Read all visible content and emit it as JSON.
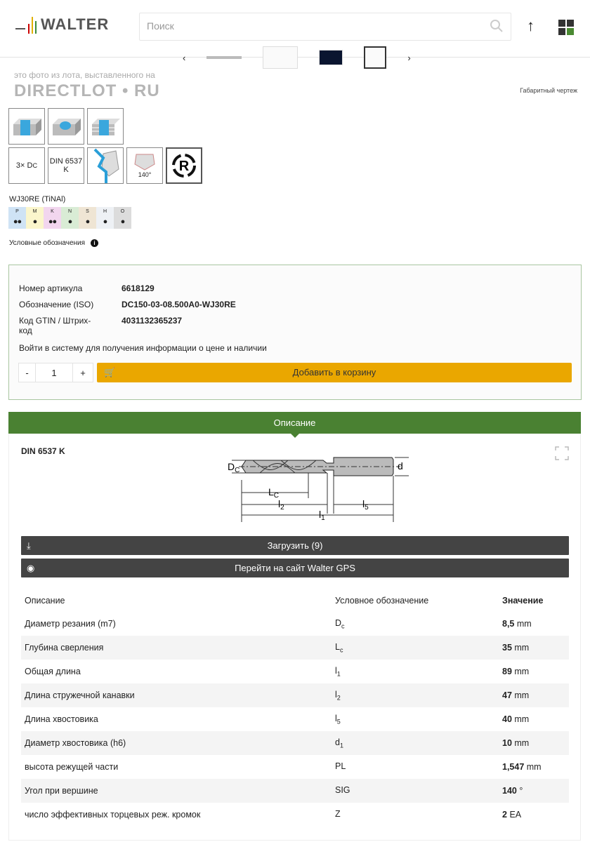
{
  "header": {
    "logo": "WALTER",
    "search_placeholder": "Поиск",
    "scroll_up_icon": "arrow-up-icon",
    "menu_icon": "grid-icon",
    "brand_color": "#4a8132"
  },
  "watermark": {
    "line1": "это фото из лота, выставленного на",
    "line2": "DIRECTLOT • RU"
  },
  "gallery": {
    "caption": "Габаритный чертеж"
  },
  "icons": {
    "depth": "3× D",
    "depth_sub": "C",
    "din": "DIN 6537 K",
    "angle": "140°",
    "regrind": "R"
  },
  "grade": {
    "name": "WJ30RE (TiNAl)",
    "materials": [
      {
        "code": "P",
        "dots": "●●",
        "color": "#cfe3f5"
      },
      {
        "code": "M",
        "dots": "●",
        "color": "#fbf6cc"
      },
      {
        "code": "K",
        "dots": "●●",
        "color": "#f2d6ee"
      },
      {
        "code": "N",
        "dots": "●",
        "color": "#d9ecd5"
      },
      {
        "code": "S",
        "dots": "●",
        "color": "#efe5d4"
      },
      {
        "code": "H",
        "dots": "●",
        "color": "#eef1f5"
      },
      {
        "code": "O",
        "dots": "●",
        "color": "#dcdcdc"
      }
    ]
  },
  "legend": {
    "label": "Условные обозначения",
    "icon": "i"
  },
  "product": {
    "article_label": "Номер артикула",
    "article": "6618129",
    "iso_label": "Обозначение (ISO)",
    "iso": "DC150-03-08.500A0-WJ30RE",
    "gtin_label": "Код GTIN / Штрих-код",
    "gtin": "4031132365237",
    "login_link": "Войти в систему",
    "login_text": "для получения информации о цене и наличии",
    "qty_minus": "-",
    "qty": "1",
    "qty_plus": "+",
    "add_to_cart": "Добавить в корзину"
  },
  "tab": {
    "label": "Описание"
  },
  "drawing": {
    "standard": "DIN 6537 K",
    "dc": "D",
    "dc_sub": "C",
    "d": "d",
    "lc": "L",
    "lc_sub": "C",
    "l2": "l",
    "l2_sub": "2",
    "l5": "l",
    "l5_sub": "5",
    "l1": "l",
    "l1_sub": "1"
  },
  "buttons": {
    "download": "Загрузить (9)",
    "gps": "Перейти на сайт Walter GPS"
  },
  "table": {
    "headers": [
      "Описание",
      "Условное обозначение",
      "Значение"
    ],
    "rows": [
      {
        "desc": "Диаметр резания (m7)",
        "sym": "D",
        "sub": "c",
        "val": "8,5",
        "unit": "mm"
      },
      {
        "desc": "Глубина сверления",
        "sym": "L",
        "sub": "c",
        "val": "35",
        "unit": "mm"
      },
      {
        "desc": "Общая длина",
        "sym": "l",
        "sub": "1",
        "val": "89",
        "unit": "mm"
      },
      {
        "desc": "Длина стружечной канавки",
        "sym": "l",
        "sub": "2",
        "val": "47",
        "unit": "mm"
      },
      {
        "desc": "Длина хвостовика",
        "sym": "l",
        "sub": "5",
        "val": "40",
        "unit": "mm"
      },
      {
        "desc": "Диаметр хвостовика (h6)",
        "sym": "d",
        "sub": "1",
        "val": "10",
        "unit": "mm"
      },
      {
        "desc": "высота режущей части",
        "sym": "PL",
        "sub": "",
        "val": "1,547",
        "unit": "mm"
      },
      {
        "desc": "Угол при вершине",
        "sym": "SIG",
        "sub": "",
        "val": "140",
        "unit": "°"
      },
      {
        "desc": "число эффективных торцевых реж. кромок",
        "sym": "Z",
        "sub": "",
        "val": "2",
        "unit": "EA"
      }
    ]
  }
}
